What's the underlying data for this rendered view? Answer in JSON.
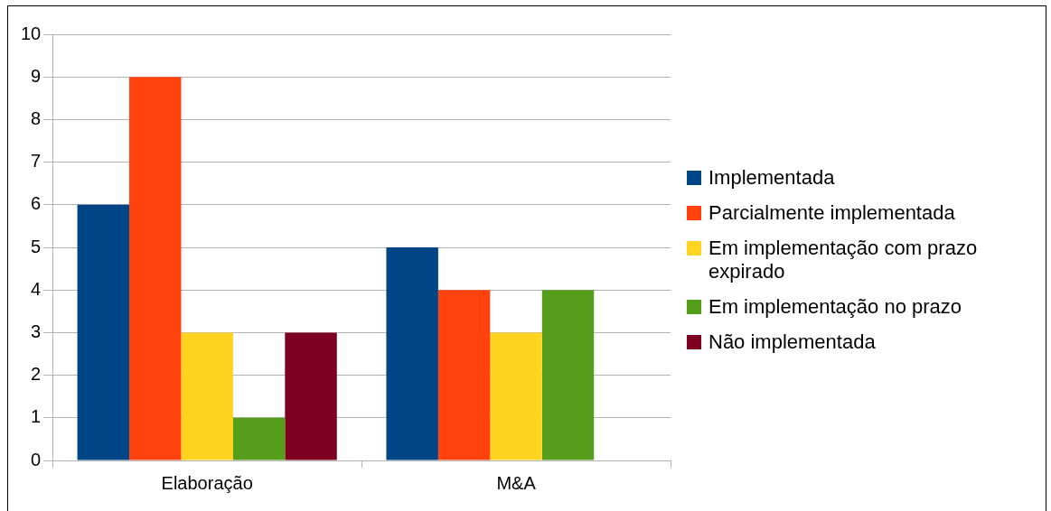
{
  "chart_data": {
    "type": "bar",
    "categories": [
      "Elaboração",
      "M&A"
    ],
    "series": [
      {
        "name": "Implementada",
        "color": "#004586",
        "values": [
          6,
          5
        ]
      },
      {
        "name": "Parcialmente implementada",
        "color": "#ff420e",
        "values": [
          9,
          4
        ]
      },
      {
        "name": "Em implementação com prazo expirado",
        "color": "#ffd320",
        "values": [
          3,
          3
        ]
      },
      {
        "name": "Em implementação no prazo",
        "color": "#579d1c",
        "values": [
          1,
          4
        ]
      },
      {
        "name": "Não implementada",
        "color": "#7e0021",
        "values": [
          3,
          null
        ]
      }
    ],
    "ylim": [
      0,
      10
    ],
    "yticks": [
      0,
      1,
      2,
      3,
      4,
      5,
      6,
      7,
      8,
      9,
      10
    ],
    "grid": "y",
    "legend": "right"
  }
}
